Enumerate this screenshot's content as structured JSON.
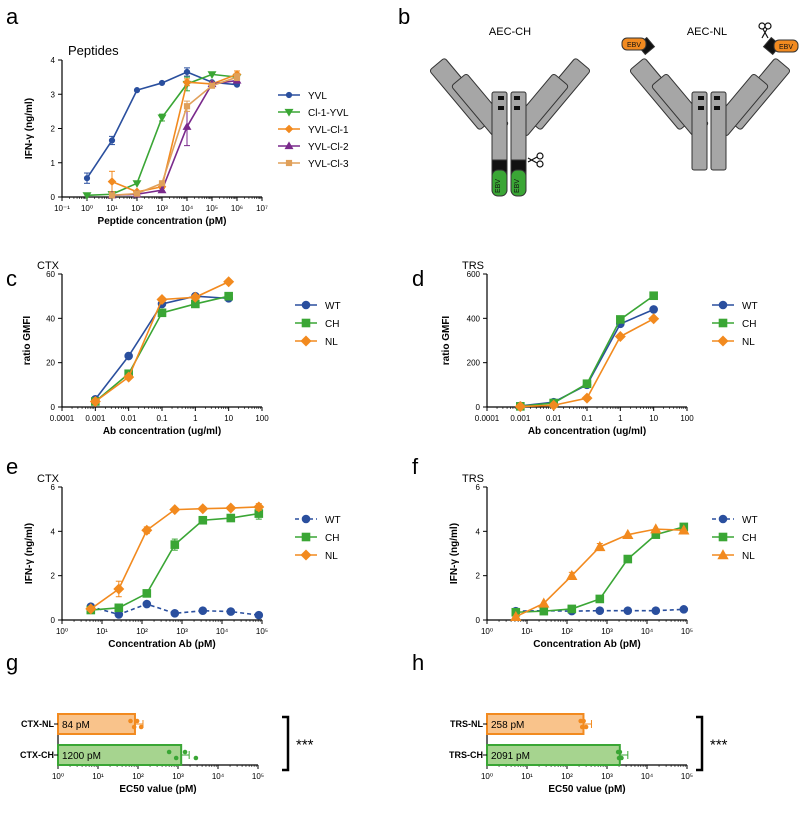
{
  "colors": {
    "blue": "#2a4f9e",
    "green": "#3aa635",
    "orange": "#f28a1f",
    "purple": "#7a2a8c",
    "tan": "#e0a05a",
    "axis": "#000000",
    "gray_ab": "#a6a6a6",
    "bar_orange_fill": "#f9c38b",
    "bar_green_fill": "#a6d48f"
  },
  "chart_data": [
    {
      "panel": "a",
      "type": "line",
      "title": "Peptides",
      "xlabel": "Peptide concentration (pM)",
      "ylabel": "IFN-γ (ng/ml)",
      "xscale": "log",
      "xlim_exp": [
        -1,
        7
      ],
      "xticks": [
        "10⁻¹",
        "10⁰",
        "10¹",
        "10²",
        "10³",
        "10⁴",
        "10⁵",
        "10⁶",
        "10⁷"
      ],
      "ylim": [
        0,
        4
      ],
      "yticks": [
        "0",
        "1",
        "2",
        "3",
        "4"
      ],
      "legend": "right",
      "series": [
        {
          "name": "YVL",
          "marker": "circle",
          "color": "blue",
          "x_exp": [
            0,
            1,
            2,
            3,
            4,
            5,
            6
          ],
          "values": [
            0.55,
            1.65,
            3.12,
            3.33,
            3.65,
            3.35,
            3.28
          ],
          "err": [
            0.15,
            0.12,
            0,
            0,
            0.12,
            0,
            0
          ]
        },
        {
          "name": "Cl-1-YVL",
          "marker": "triangle-down",
          "color": "green",
          "x_exp": [
            0,
            1,
            2,
            3,
            4,
            5,
            6
          ],
          "values": [
            0.05,
            0.08,
            0.4,
            2.32,
            3.3,
            3.58,
            3.5
          ],
          "err": [
            0,
            0,
            0,
            0.1,
            0.2,
            0,
            0
          ]
        },
        {
          "name": "YVL-Cl-1",
          "marker": "diamond",
          "color": "orange",
          "x_exp": [
            1,
            2,
            3,
            4,
            5,
            6
          ],
          "values": [
            0.45,
            0.15,
            0.3,
            3.35,
            3.3,
            3.58
          ],
          "err": [
            0.3,
            0,
            0.05,
            0.1,
            0,
            0.1
          ]
        },
        {
          "name": "YVL-Cl-2",
          "marker": "triangle-up",
          "color": "purple",
          "x_exp": [
            1,
            2,
            3,
            4,
            5,
            6
          ],
          "values": [
            0.05,
            0.08,
            0.2,
            2.05,
            3.3,
            3.4
          ],
          "err": [
            0,
            0,
            0,
            0.55,
            0,
            0
          ]
        },
        {
          "name": "YVL-Cl-3",
          "marker": "square",
          "color": "tan",
          "x_exp": [
            1,
            2,
            3,
            4,
            5,
            6
          ],
          "values": [
            0.05,
            0.1,
            0.4,
            2.65,
            3.25,
            3.5
          ],
          "err": [
            0,
            0,
            0,
            0.15,
            0,
            0.1
          ]
        }
      ]
    },
    {
      "panel": "c",
      "type": "line",
      "title": "CTX",
      "xlabel": "Ab concentration (ug/ml)",
      "ylabel": "ratio GMFI",
      "xscale": "log",
      "xlim_exp": [
        -4,
        2
      ],
      "xticks": [
        "0.0001",
        "0.001",
        "0.01",
        "0.1",
        "1",
        "10",
        "100"
      ],
      "ylim": [
        0,
        60
      ],
      "yticks": [
        "0",
        "20",
        "40",
        "60"
      ],
      "legend": "right",
      "series": [
        {
          "name": "WT",
          "marker": "circle",
          "color": "blue",
          "x_exp": [
            -3,
            -2,
            -1,
            0,
            1
          ],
          "values": [
            3.5,
            23,
            46.5,
            50,
            49
          ]
        },
        {
          "name": "CH",
          "marker": "square",
          "color": "green",
          "x_exp": [
            -3,
            -2,
            -1,
            0,
            1
          ],
          "values": [
            2.5,
            15,
            42.5,
            46.5,
            50
          ]
        },
        {
          "name": "NL",
          "marker": "diamond",
          "color": "orange",
          "x_exp": [
            -3,
            -2,
            -1,
            0,
            1
          ],
          "values": [
            2.5,
            13.5,
            48.5,
            49.5,
            56.5
          ]
        }
      ]
    },
    {
      "panel": "d",
      "type": "line",
      "title": "TRS",
      "xlabel": "Ab concentration (ug/ml)",
      "ylabel": "ratio GMFI",
      "xscale": "log",
      "xlim_exp": [
        -4,
        2
      ],
      "xticks": [
        "0.0001",
        "0.001",
        "0.01",
        "0.1",
        "1",
        "10",
        "100"
      ],
      "ylim": [
        0,
        600
      ],
      "yticks": [
        "0",
        "200",
        "400",
        "600"
      ],
      "legend": "right",
      "series": [
        {
          "name": "WT",
          "marker": "circle",
          "color": "blue",
          "x_exp": [
            -3,
            -2,
            -1,
            0,
            1
          ],
          "values": [
            5,
            22,
            100,
            375,
            440
          ]
        },
        {
          "name": "CH",
          "marker": "square",
          "color": "green",
          "x_exp": [
            -3,
            -2,
            -1,
            0,
            1
          ],
          "values": [
            3,
            18,
            105,
            395,
            502
          ]
        },
        {
          "name": "NL",
          "marker": "diamond",
          "color": "orange",
          "x_exp": [
            -3,
            -2,
            -1,
            0,
            1
          ],
          "values": [
            2,
            8,
            40,
            318,
            398
          ]
        }
      ]
    },
    {
      "panel": "e",
      "type": "line",
      "title": "CTX",
      "xlabel": "Concentration Ab (pM)",
      "ylabel": "IFN-γ (ng/ml)",
      "xscale": "log",
      "xlim_exp": [
        0,
        5
      ],
      "xticks": [
        "10⁰",
        "10¹",
        "10²",
        "10³",
        "10⁴",
        "10⁵"
      ],
      "ylim": [
        0,
        6
      ],
      "yticks": [
        "0",
        "2",
        "4",
        "6"
      ],
      "legend": "right",
      "series": [
        {
          "name": "WT",
          "marker": "circle",
          "color": "blue",
          "dashed": true,
          "x_exp": [
            0.72,
            1.42,
            2.12,
            2.82,
            3.52,
            4.22,
            4.92
          ],
          "values": [
            0.6,
            0.25,
            0.72,
            0.3,
            0.42,
            0.38,
            0.22
          ],
          "err": [
            0,
            0,
            0,
            0,
            0,
            0,
            0
          ]
        },
        {
          "name": "CH",
          "marker": "square",
          "color": "green",
          "x_exp": [
            0.72,
            1.42,
            2.12,
            2.82,
            3.52,
            4.22,
            4.92
          ],
          "values": [
            0.45,
            0.55,
            1.2,
            3.4,
            4.5,
            4.6,
            4.8
          ],
          "err": [
            0,
            0,
            0,
            0.25,
            0,
            0,
            0.25
          ]
        },
        {
          "name": "NL",
          "marker": "diamond",
          "color": "orange",
          "x_exp": [
            0.72,
            1.42,
            2.12,
            2.82,
            3.52,
            4.22,
            4.92
          ],
          "values": [
            0.5,
            1.4,
            4.05,
            4.98,
            5.02,
            5.05,
            5.1
          ],
          "err": [
            0,
            0.35,
            0.15,
            0,
            0,
            0,
            0.15
          ]
        }
      ]
    },
    {
      "panel": "f",
      "type": "line",
      "title": "TRS",
      "xlabel": "Concentration Ab (pM)",
      "ylabel": "IFN-γ (ng/ml)",
      "xscale": "log",
      "xlim_exp": [
        0,
        5
      ],
      "xticks": [
        "10⁰",
        "10¹",
        "10²",
        "10³",
        "10⁴",
        "10⁵"
      ],
      "ylim": [
        0,
        6
      ],
      "yticks": [
        "0",
        "2",
        "4",
        "6"
      ],
      "legend": "right",
      "series": [
        {
          "name": "WT",
          "marker": "circle",
          "color": "blue",
          "dashed": true,
          "x_exp": [
            0.72,
            1.42,
            2.12,
            2.82,
            3.52,
            4.22,
            4.92
          ],
          "values": [
            0.4,
            0.42,
            0.4,
            0.42,
            0.42,
            0.42,
            0.48
          ],
          "err": [
            0,
            0,
            0,
            0,
            0,
            0,
            0
          ]
        },
        {
          "name": "CH",
          "marker": "square",
          "color": "green",
          "x_exp": [
            0.72,
            1.42,
            2.12,
            2.82,
            3.52,
            4.22,
            4.92
          ],
          "values": [
            0.35,
            0.4,
            0.5,
            0.95,
            2.75,
            3.85,
            4.2
          ],
          "err": [
            0,
            0,
            0,
            0,
            0,
            0,
            0
          ]
        },
        {
          "name": "NL",
          "marker": "triangle-up",
          "color": "orange",
          "x_exp": [
            0.72,
            1.42,
            2.12,
            2.82,
            3.52,
            4.22,
            4.92
          ],
          "values": [
            0.15,
            0.75,
            2.0,
            3.3,
            3.85,
            4.1,
            4.05
          ],
          "err": [
            0,
            0,
            0.15,
            0.15,
            0,
            0,
            0
          ]
        }
      ]
    },
    {
      "panel": "g",
      "type": "bar",
      "orientation": "horizontal",
      "xlabel": "EC50 value (pM)",
      "xscale": "log",
      "xlim_exp": [
        0,
        5
      ],
      "xticks": [
        "10⁰",
        "10¹",
        "10²",
        "10³",
        "10⁴",
        "10⁵"
      ],
      "categories": [
        "CTX-NL",
        "CTX-CH"
      ],
      "values": [
        84,
        1200
      ],
      "value_labels": [
        "84 pM",
        "1200 pM"
      ],
      "colors": [
        "orange",
        "green"
      ],
      "points": [
        [
          65,
          80,
          95,
          120
        ],
        [
          600,
          900,
          1500,
          2800
        ]
      ],
      "significance": "***"
    },
    {
      "panel": "h",
      "type": "bar",
      "orientation": "horizontal",
      "xlabel": "EC50 value (pM)",
      "xscale": "log",
      "xlim_exp": [
        0,
        5
      ],
      "xticks": [
        "10⁰",
        "10¹",
        "10²",
        "10³",
        "10⁴",
        "10⁵"
      ],
      "categories": [
        "TRS-NL",
        "TRS-CH"
      ],
      "values": [
        258,
        2091
      ],
      "value_labels": [
        "258 pM",
        "2091 pM"
      ],
      "colors": [
        "orange",
        "green"
      ],
      "points": [
        [
          220,
          240,
          260,
          300
        ],
        [
          1900,
          2000,
          2100,
          2300
        ]
      ],
      "significance": "***"
    }
  ],
  "panel_labels": {
    "a": "a",
    "b": "b",
    "c": "c",
    "d": "d",
    "e": "e",
    "f": "f",
    "g": "g",
    "h": "h"
  },
  "schematic": {
    "left_title": "AEC-CH",
    "right_title": "AEC-NL",
    "tag": "EBV"
  }
}
